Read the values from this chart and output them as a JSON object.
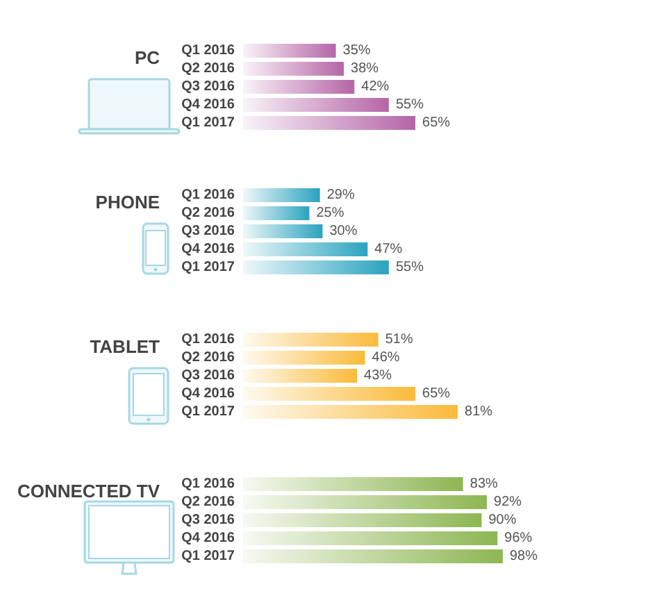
{
  "chart_data": [
    {
      "type": "bar",
      "orientation": "horizontal",
      "title": "PC",
      "categories": [
        "Q1 2016",
        "Q2 2016",
        "Q3 2016",
        "Q4 2016",
        "Q1 2017"
      ],
      "values": [
        35,
        38,
        42,
        55,
        65
      ],
      "value_labels": [
        "35%",
        "38%",
        "42%",
        "55%",
        "65%"
      ],
      "color": "#b565a7"
    },
    {
      "type": "bar",
      "orientation": "horizontal",
      "title": "PHONE",
      "categories": [
        "Q1 2016",
        "Q2 2016",
        "Q3 2016",
        "Q4 2016",
        "Q1 2017"
      ],
      "values": [
        29,
        25,
        30,
        47,
        55
      ],
      "value_labels": [
        "29%",
        "25%",
        "30%",
        "47%",
        "55%"
      ],
      "color": "#2aa3bf"
    },
    {
      "type": "bar",
      "orientation": "horizontal",
      "title": "TABLET",
      "categories": [
        "Q1 2016",
        "Q2 2016",
        "Q3 2016",
        "Q4 2016",
        "Q1 2017"
      ],
      "values": [
        51,
        46,
        43,
        65,
        81
      ],
      "value_labels": [
        "51%",
        "46%",
        "43%",
        "65%",
        "81%"
      ],
      "color": "#fbba3a"
    },
    {
      "type": "bar",
      "orientation": "horizontal",
      "title": "CONNECTED TV",
      "categories": [
        "Q1 2016",
        "Q2 2016",
        "Q3 2016",
        "Q4 2016",
        "Q1 2017"
      ],
      "values": [
        83,
        92,
        90,
        96,
        98
      ],
      "value_labels": [
        "83%",
        "92%",
        "90%",
        "96%",
        "98%"
      ],
      "color": "#8db653"
    }
  ]
}
